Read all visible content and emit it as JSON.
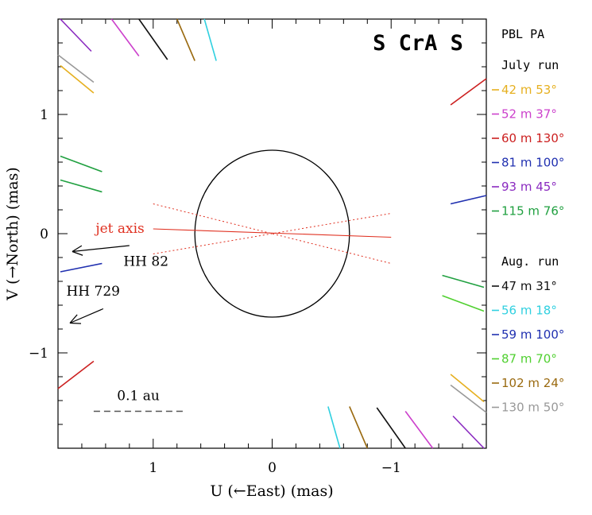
{
  "chart_data": {
    "type": "scatter",
    "title": "S CrA S",
    "xlabel": "U (←East) (mas)",
    "ylabel": "V (→North) (mas)",
    "xlim": [
      1.8,
      -1.8
    ],
    "ylim": [
      -1.8,
      1.8
    ],
    "x_ticks": [
      {
        "value": 1,
        "label": "1"
      },
      {
        "value": 0,
        "label": "0"
      },
      {
        "value": -1,
        "label": "−1"
      }
    ],
    "y_ticks": [
      {
        "value": 1,
        "label": "1"
      },
      {
        "value": 0,
        "label": "0"
      },
      {
        "value": -1,
        "label": "−1"
      }
    ],
    "ellipse": {
      "center": [
        0,
        0
      ],
      "semi_x": 0.65,
      "semi_y": 0.7
    },
    "jet_axis": {
      "label": "jet axis",
      "color": "#e03020",
      "line": {
        "x": [
          1.0,
          -1.0
        ],
        "y": [
          0.04,
          -0.03
        ]
      },
      "bounds": [
        {
          "x": [
            1.0,
            -1.0
          ],
          "y": [
            0.25,
            -0.25
          ]
        },
        {
          "x": [
            1.0,
            -1.0
          ],
          "y": [
            -0.17,
            0.17
          ]
        }
      ]
    },
    "annotations": [
      {
        "text": "HH 82",
        "label_at": [
          1.25,
          -0.27
        ],
        "arrow": {
          "from": [
            1.2,
            -0.1
          ],
          "to": [
            1.68,
            -0.15
          ]
        }
      },
      {
        "text": "HH 729",
        "label_at": [
          1.73,
          -0.52
        ],
        "arrow": {
          "from": [
            1.42,
            -0.63
          ],
          "to": [
            1.7,
            -0.75
          ]
        }
      }
    ],
    "scale_bar": {
      "label": "0.1 au",
      "x": [
        1.5,
        0.75
      ],
      "y": -1.49
    },
    "legend": {
      "header": "PBL PA",
      "groups": [
        {
          "label": "July run",
          "entries": [
            {
              "baseline": "42 m",
              "pa": "53°",
              "color": "#e6b020"
            },
            {
              "baseline": "52 m",
              "pa": "37°",
              "color": "#cc40cc"
            },
            {
              "baseline": "60 m",
              "pa": "130°",
              "color": "#cc2020"
            },
            {
              "baseline": "81 m",
              "pa": "100°",
              "color": "#2030b0"
            },
            {
              "baseline": "93 m",
              "pa": "45°",
              "color": "#8a2ac0"
            },
            {
              "baseline": "115 m",
              "pa": "76°",
              "color": "#20a040"
            }
          ]
        },
        {
          "label": "Aug. run",
          "entries": [
            {
              "baseline": "47 m",
              "pa": "31°",
              "color": "#111111"
            },
            {
              "baseline": "56 m",
              "pa": "18°",
              "color": "#30d0e0"
            },
            {
              "baseline": "59 m",
              "pa": "100°",
              "color": "#2030b0"
            },
            {
              "baseline": "87 m",
              "pa": "70°",
              "color": "#50d030"
            },
            {
              "baseline": "102 m",
              "pa": "24°",
              "color": "#9a6a10"
            },
            {
              "baseline": "130 m",
              "pa": "50°",
              "color": "#999999"
            }
          ]
        }
      ]
    },
    "uv_segments": [
      {
        "color": "#8a2ac0",
        "x": [
          1.78,
          1.52
        ],
        "y": [
          1.8,
          1.53
        ]
      },
      {
        "color": "#cc40cc",
        "x": [
          1.35,
          1.12
        ],
        "y": [
          1.8,
          1.49
        ]
      },
      {
        "color": "#111111",
        "x": [
          1.12,
          0.88
        ],
        "y": [
          1.8,
          1.46
        ]
      },
      {
        "color": "#9a6a10",
        "x": [
          0.8,
          0.65
        ],
        "y": [
          1.8,
          1.45
        ]
      },
      {
        "color": "#30d0e0",
        "x": [
          0.57,
          0.47
        ],
        "y": [
          1.8,
          1.45
        ]
      },
      {
        "color": "#999999",
        "x": [
          1.8,
          1.5
        ],
        "y": [
          1.5,
          1.27
        ]
      },
      {
        "color": "#e6b020",
        "x": [
          1.78,
          1.5
        ],
        "y": [
          1.41,
          1.18
        ]
      },
      {
        "color": "#20a040",
        "x": [
          1.78,
          1.43
        ],
        "y": [
          0.65,
          0.52
        ]
      },
      {
        "color": "#20a040",
        "x": [
          1.78,
          1.43
        ],
        "y": [
          0.45,
          0.35
        ]
      },
      {
        "color": "#2030b0",
        "x": [
          1.78,
          1.43
        ],
        "y": [
          -0.32,
          -0.25
        ]
      },
      {
        "color": "#cc2020",
        "x": [
          1.8,
          1.5
        ],
        "y": [
          -1.3,
          -1.07
        ]
      },
      {
        "color": "#cc2020",
        "x": [
          -1.5,
          -1.8
        ],
        "y": [
          1.08,
          1.3
        ]
      },
      {
        "color": "#2030b0",
        "x": [
          -1.5,
          -1.8
        ],
        "y": [
          0.25,
          0.32
        ]
      },
      {
        "color": "#20a040",
        "x": [
          -1.43,
          -1.78
        ],
        "y": [
          -0.35,
          -0.45
        ]
      },
      {
        "color": "#50d030",
        "x": [
          -1.43,
          -1.78
        ],
        "y": [
          -0.52,
          -0.65
        ]
      },
      {
        "color": "#e6b020",
        "x": [
          -1.5,
          -1.78
        ],
        "y": [
          -1.18,
          -1.41
        ]
      },
      {
        "color": "#999999",
        "x": [
          -1.5,
          -1.8
        ],
        "y": [
          -1.27,
          -1.5
        ]
      },
      {
        "color": "#8a2ac0",
        "x": [
          -1.52,
          -1.78
        ],
        "y": [
          -1.53,
          -1.8
        ]
      },
      {
        "color": "#cc40cc",
        "x": [
          -1.12,
          -1.35
        ],
        "y": [
          -1.49,
          -1.8
        ]
      },
      {
        "color": "#111111",
        "x": [
          -0.88,
          -1.12
        ],
        "y": [
          -1.46,
          -1.8
        ]
      },
      {
        "color": "#9a6a10",
        "x": [
          -0.65,
          -0.8
        ],
        "y": [
          -1.45,
          -1.8
        ]
      },
      {
        "color": "#30d0e0",
        "x": [
          -0.47,
          -0.57
        ],
        "y": [
          -1.45,
          -1.8
        ]
      }
    ]
  }
}
